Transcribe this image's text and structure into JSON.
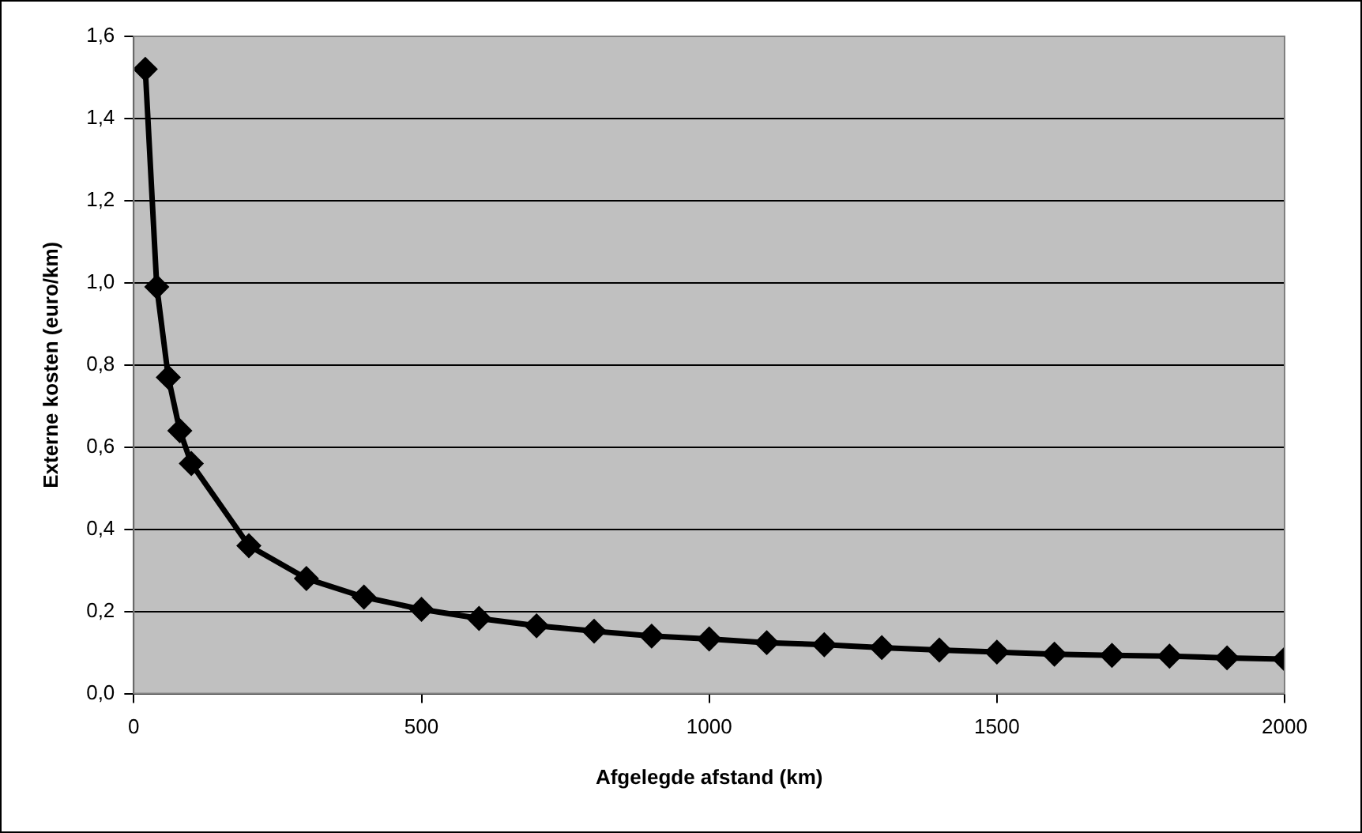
{
  "chart_data": {
    "type": "line",
    "xlabel": "Afgelegde afstand (km)",
    "ylabel": "Externe kosten (euro/km)",
    "x": [
      20,
      40,
      60,
      80,
      100,
      200,
      300,
      400,
      500,
      600,
      700,
      800,
      900,
      1000,
      1100,
      1200,
      1300,
      1400,
      1500,
      1600,
      1700,
      1800,
      1900,
      2000
    ],
    "series": [
      {
        "color": "#000000",
        "values": [
          1.52,
          0.99,
          0.77,
          0.64,
          0.56,
          0.36,
          0.28,
          0.235,
          0.205,
          0.183,
          0.165,
          0.152,
          0.14,
          0.133,
          0.124,
          0.119,
          0.112,
          0.106,
          0.101,
          0.096,
          0.093,
          0.091,
          0.087,
          0.084
        ]
      }
    ],
    "xlim": [
      0,
      2000
    ],
    "xticks": [
      0,
      500,
      1000,
      1500,
      2000
    ],
    "ylim": [
      0,
      1.6
    ],
    "yticks": [
      {
        "value": 0,
        "label": "0,0"
      },
      {
        "value": 0.2,
        "label": "0,2"
      },
      {
        "value": 0.4,
        "label": "0,4"
      },
      {
        "value": 0.6,
        "label": "0,6"
      },
      {
        "value": 0.8,
        "label": "0,8"
      },
      {
        "value": 1,
        "label": "1,0"
      },
      {
        "value": 1.2,
        "label": "1,2"
      },
      {
        "value": 1.4,
        "label": "1,4"
      },
      {
        "value": 1.6,
        "label": "1,6"
      }
    ],
    "grid": "y",
    "legend": false,
    "marker": "diamond",
    "line_style": "solid"
  }
}
